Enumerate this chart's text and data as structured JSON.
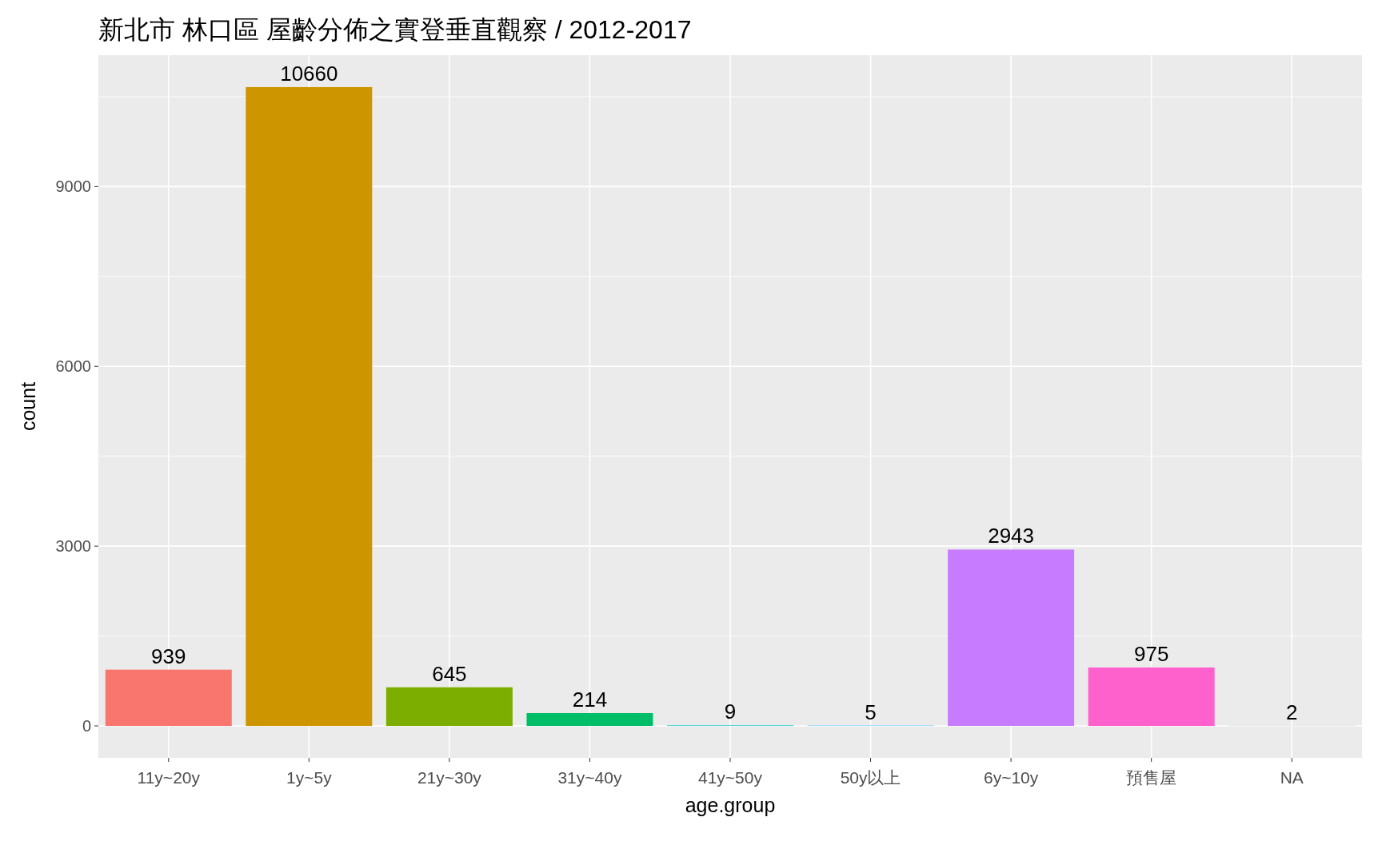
{
  "chart_data": {
    "type": "bar",
    "title": "新北市 林口區 屋齡分佈之實登垂直觀察 / 2012-2017",
    "xlabel": "age.group",
    "ylabel": "count",
    "categories": [
      "11y~20y",
      "1y~5y",
      "21y~30y",
      "31y~40y",
      "41y~50y",
      "50y以上",
      "6y~10y",
      "預售屋",
      "NA"
    ],
    "values": [
      939,
      10660,
      645,
      214,
      9,
      5,
      2943,
      975,
      2
    ],
    "colors": [
      "#f8766d",
      "#cd9600",
      "#7cae00",
      "#00be67",
      "#00bfc4",
      "#00a9ff",
      "#c77cff",
      "#ff61cc",
      "#7f7f7f"
    ],
    "ylim": [
      -533,
      11193
    ],
    "yticks": [
      0,
      3000,
      6000,
      9000
    ],
    "grid": true,
    "data_labels": true
  }
}
